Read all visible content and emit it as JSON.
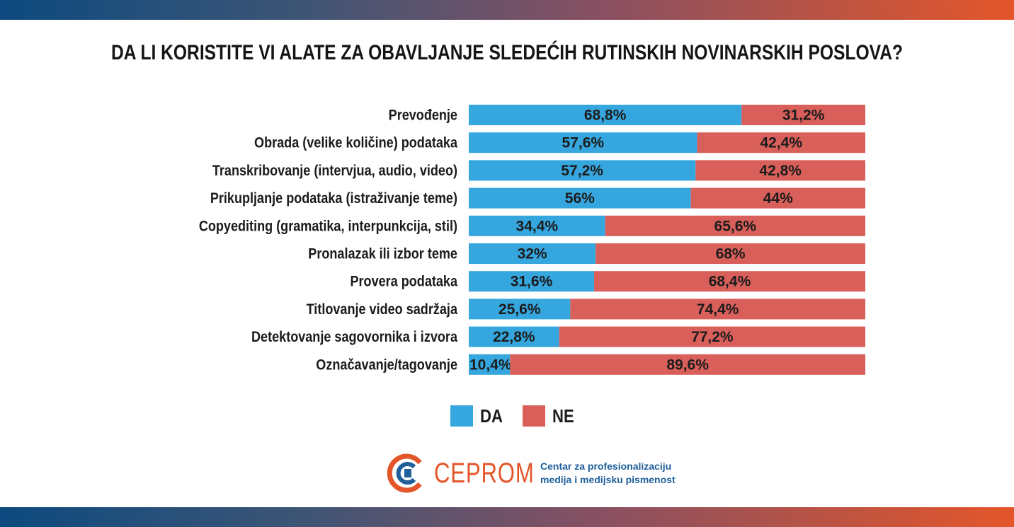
{
  "header": {
    "title": "DA LI KORISTITE VI ALATE ZA OBAVLJANJE SLEDEĆIH RUTINSKIH NOVINARSKIH POSLOVA?"
  },
  "colors": {
    "da": "#36a6de",
    "ne": "#d95f5a",
    "brand_orange": "#e4562a",
    "brand_blue": "#1f5f9a"
  },
  "chart_data": {
    "type": "bar",
    "orientation": "horizontal",
    "stacked": true,
    "normalized": true,
    "title": "DA LI KORISTITE VI ALATE ZA OBAVLJANJE SLEDEĆIH RUTINSKIH NOVINARSKIH POSLOVA?",
    "categories": [
      "Prevođenje",
      "Obrada (velike količine) podataka",
      "Transkribovanje (intervjua, audio, video)",
      "Prikupljanje podataka (istraživanje teme)",
      "Copyediting (gramatika, interpunkcija, stil)",
      "Pronalazak ili izbor teme",
      "Provera podataka",
      "Titlovanje video sadržaja",
      "Detektovanje sagovornika i izvora",
      "Označavanje/tagovanje"
    ],
    "series": [
      {
        "name": "DA",
        "values": [
          68.8,
          57.6,
          57.2,
          56,
          34.4,
          32,
          31.6,
          25.6,
          22.8,
          10.4
        ],
        "labels": [
          "68,8%",
          "57,6%",
          "57,2%",
          "56%",
          "34,4%",
          "32%",
          "31,6%",
          "25,6%",
          "22,8%",
          "10,4%"
        ]
      },
      {
        "name": "NE",
        "values": [
          31.2,
          42.4,
          42.8,
          44,
          65.6,
          68,
          68.4,
          74.4,
          77.2,
          89.6
        ],
        "labels": [
          "31,2%",
          "42,4%",
          "42,8%",
          "44%",
          "65,6%",
          "68%",
          "68,4%",
          "74,4%",
          "77,2%",
          "89,6%"
        ]
      }
    ],
    "xlim": [
      0,
      100
    ],
    "grid": false,
    "legend": "bottom-center"
  },
  "legend": {
    "da_label": "DA",
    "ne_label": "NE"
  },
  "logo": {
    "name": "CEPROM",
    "tagline_line1": "Centar za profesionalizaciju",
    "tagline_line2": "medija i medijsku pismenost"
  }
}
